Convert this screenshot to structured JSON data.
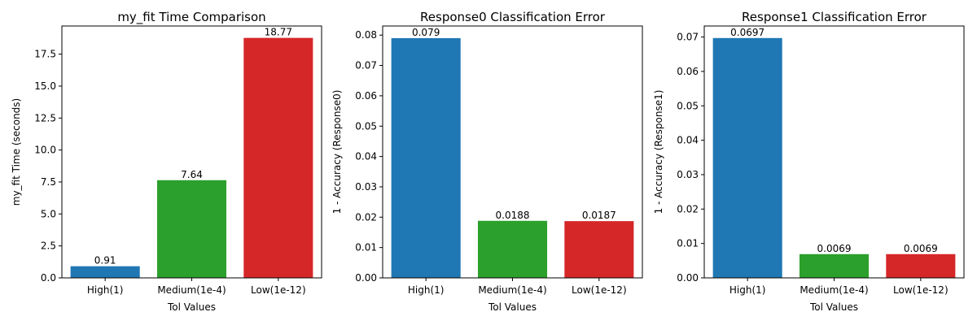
{
  "chart_data": [
    {
      "type": "bar",
      "title": "my_fit Time Comparison",
      "xlabel": "Tol Values",
      "ylabel": "my_fit Time (seconds)",
      "categories": [
        "High(1)",
        "Medium(1e-4)",
        "Low(1e-12)"
      ],
      "values": [
        0.91,
        7.64,
        18.77
      ],
      "value_labels": [
        "0.91",
        "7.64",
        "18.77"
      ],
      "ylim": [
        0,
        19.7
      ],
      "yticks": [
        0,
        2.5,
        5,
        7.5,
        10,
        12.5,
        15,
        17.5
      ],
      "ytick_labels": [
        "0.0",
        "2.5",
        "5.0",
        "7.5",
        "10.0",
        "12.5",
        "15.0",
        "17.5"
      ],
      "colors": [
        "#1f77b4",
        "#2ca02c",
        "#d62728"
      ],
      "grid": false
    },
    {
      "type": "bar",
      "title": "Response0 Classification Error",
      "xlabel": "Tol Values",
      "ylabel": "1 - Accuracy (Response0)",
      "categories": [
        "High(1)",
        "Medium(1e-4)",
        "Low(1e-12)"
      ],
      "values": [
        0.079,
        0.0188,
        0.0187
      ],
      "value_labels": [
        "0.079",
        "0.0188",
        "0.0187"
      ],
      "ylim": [
        0,
        0.083
      ],
      "yticks": [
        0,
        0.01,
        0.02,
        0.03,
        0.04,
        0.05,
        0.06,
        0.07,
        0.08
      ],
      "ytick_labels": [
        "0.00",
        "0.01",
        "0.02",
        "0.03",
        "0.04",
        "0.05",
        "0.06",
        "0.07",
        "0.08"
      ],
      "colors": [
        "#1f77b4",
        "#2ca02c",
        "#d62728"
      ],
      "grid": false
    },
    {
      "type": "bar",
      "title": "Response1 Classification Error",
      "xlabel": "Tol Values",
      "ylabel": "1 - Accuracy (Response1)",
      "categories": [
        "High(1)",
        "Medium(1e-4)",
        "Low(1e-12)"
      ],
      "values": [
        0.0697,
        0.0069,
        0.0069
      ],
      "value_labels": [
        "0.0697",
        "0.0069",
        "0.0069"
      ],
      "ylim": [
        0,
        0.0732
      ],
      "yticks": [
        0,
        0.01,
        0.02,
        0.03,
        0.04,
        0.05,
        0.06,
        0.07
      ],
      "ytick_labels": [
        "0.00",
        "0.01",
        "0.02",
        "0.03",
        "0.04",
        "0.05",
        "0.06",
        "0.07"
      ],
      "colors": [
        "#1f77b4",
        "#2ca02c",
        "#d62728"
      ],
      "grid": false
    }
  ]
}
